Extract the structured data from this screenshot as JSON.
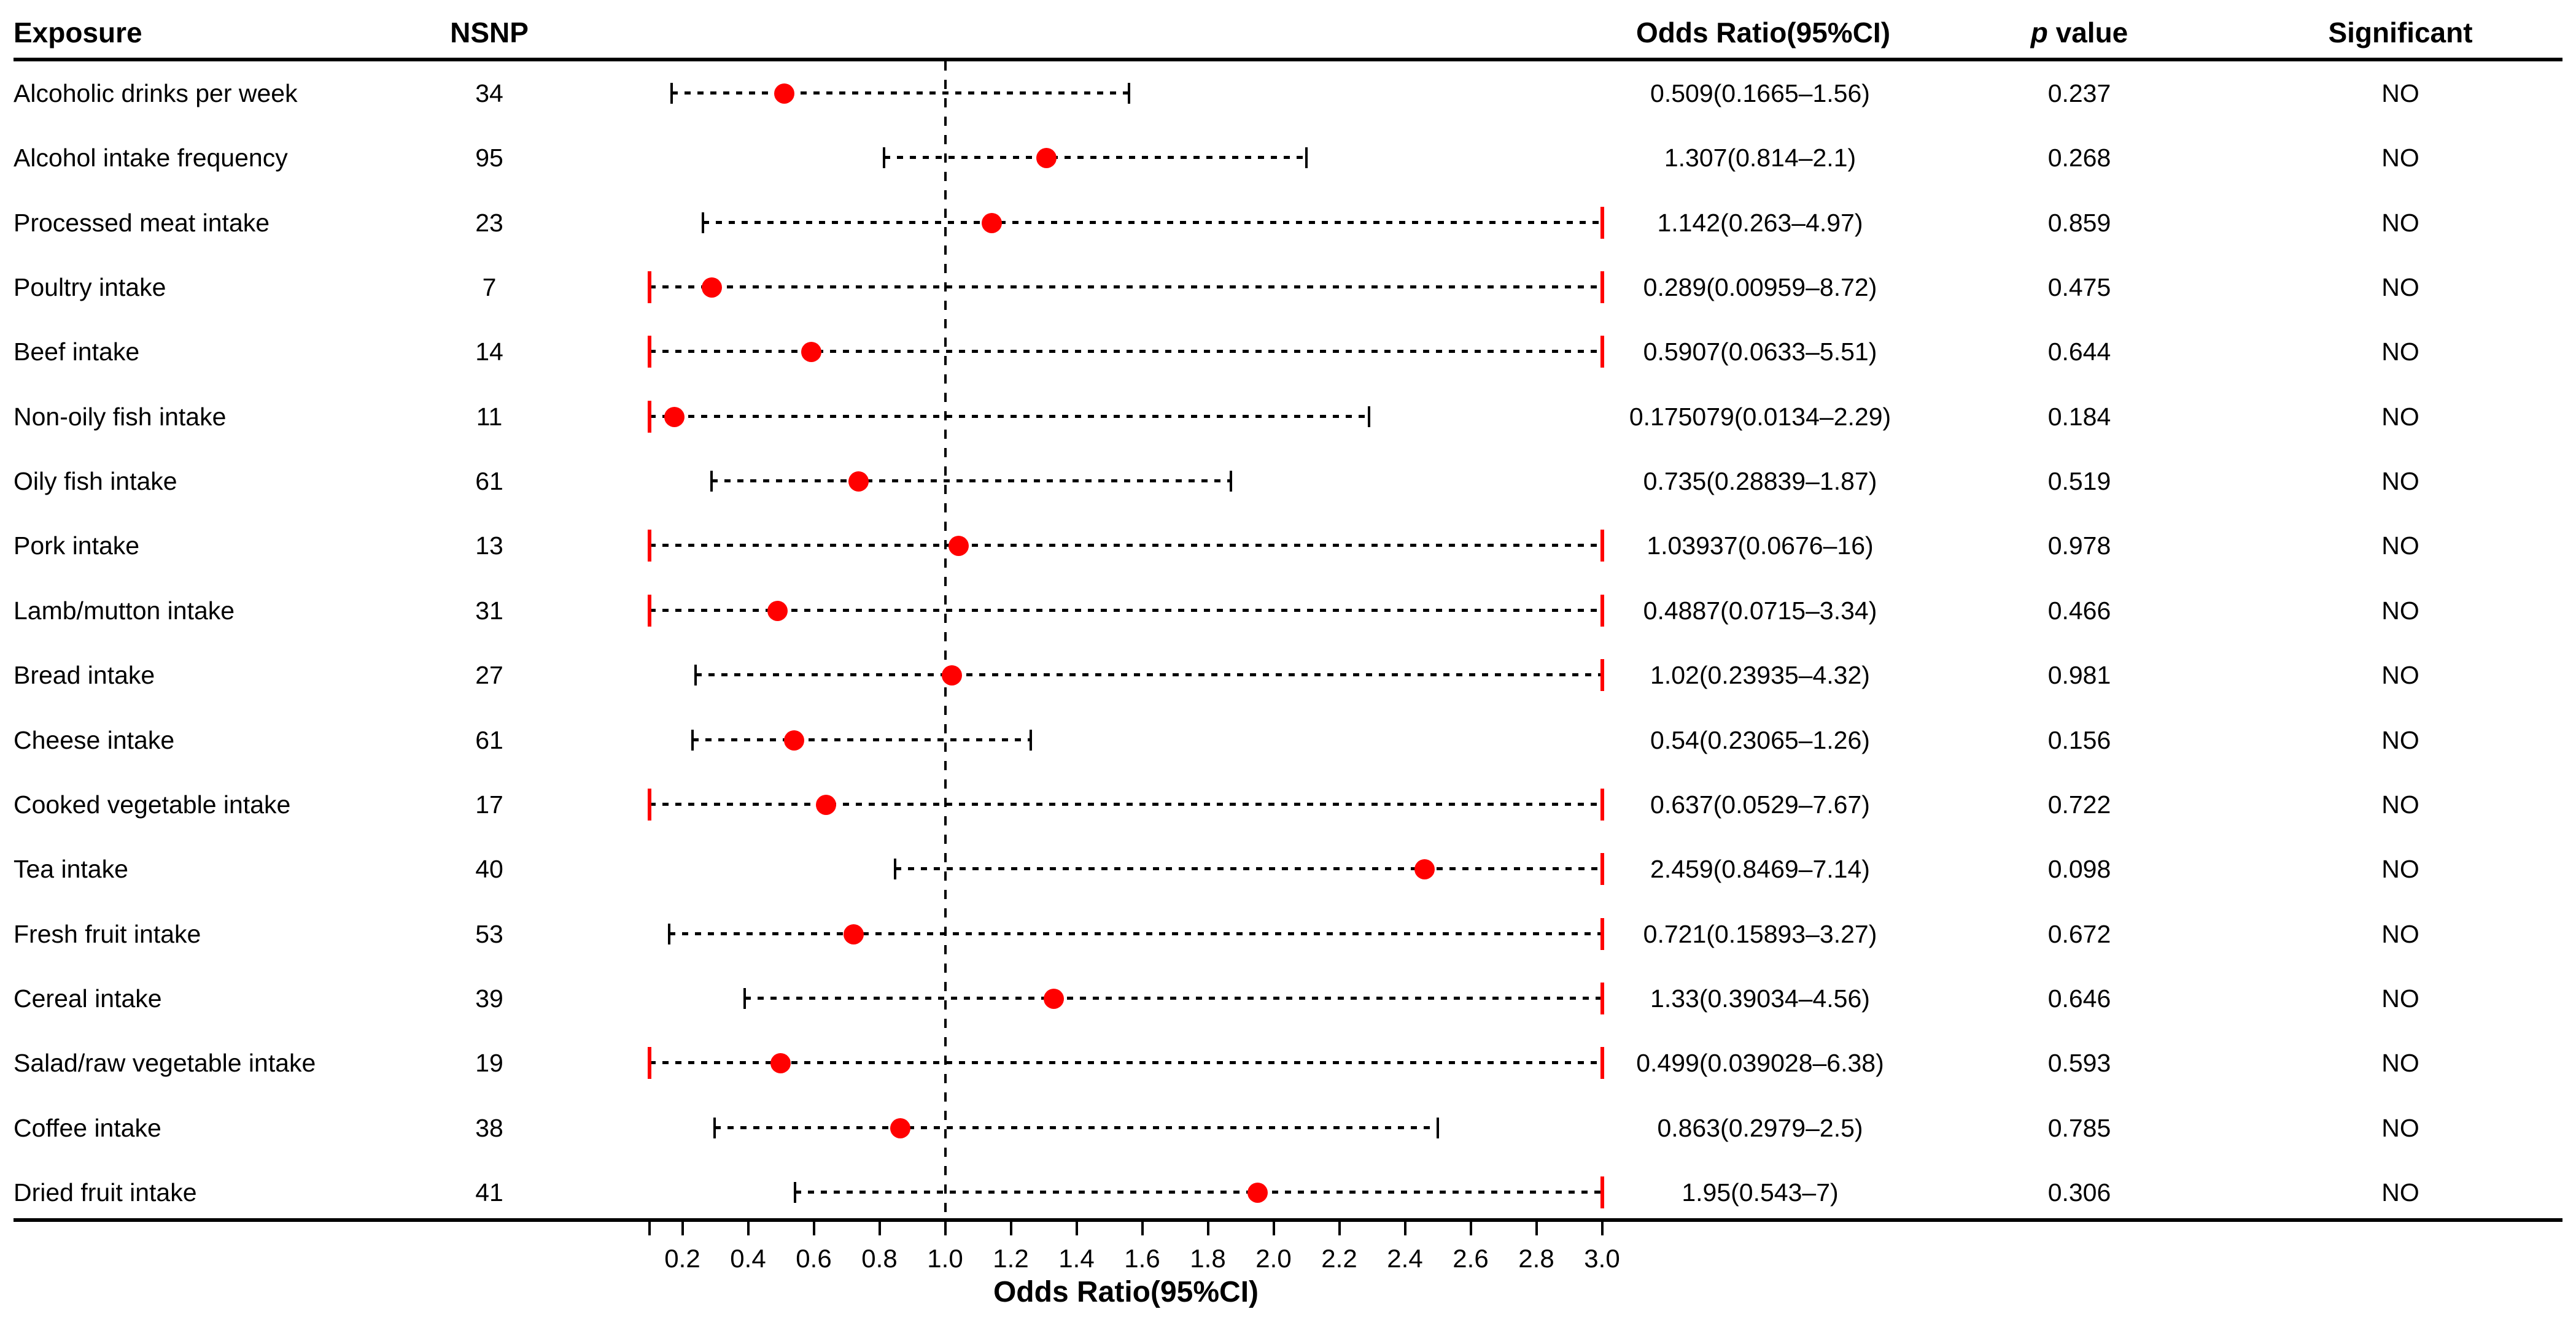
{
  "columns": {
    "exposure": "Exposure",
    "nsnp": "NSNP",
    "or_ci": "Odds Ratio(95%CI)",
    "p_italic": "p",
    "p_rest": " value",
    "significant": "Significant"
  },
  "colors": {
    "marker": "#ff0000",
    "clip_bar": "#ff0000",
    "line": "#000000",
    "text": "#000000",
    "background": "#ffffff"
  },
  "chart_data": {
    "type": "scatter",
    "subtype": "forest-plot",
    "title": "",
    "xlabel": "Odds Ratio(95%CI)",
    "ylabel": "",
    "grid": false,
    "x_axis": {
      "min": 0.1,
      "max": 3.05,
      "clip_low": 0.1,
      "clip_high": 3.0,
      "reference_line": 1.0,
      "minor_tick": 0.1,
      "ticks": [
        0.2,
        0.4,
        0.6,
        0.8,
        1.0,
        1.2,
        1.4,
        1.6,
        1.8,
        2.0,
        2.2,
        2.4,
        2.6,
        2.8,
        3.0
      ],
      "tick_labels": [
        "0.2",
        "0.4",
        "0.6",
        "0.8",
        "1.0",
        "1.2",
        "1.4",
        "1.6",
        "1.8",
        "2.0",
        "2.2",
        "2.4",
        "2.6",
        "2.8",
        "3.0"
      ]
    },
    "rows": [
      {
        "exposure": "Alcoholic drinks per week",
        "nsnp": "34",
        "or": 0.509,
        "ci_low": 0.1665,
        "ci_high": 1.56,
        "or_ci": "0.509(0.1665–1.56)",
        "p": "0.237",
        "significant": "NO"
      },
      {
        "exposure": "Alcohol intake frequency",
        "nsnp": "95",
        "or": 1.307,
        "ci_low": 0.814,
        "ci_high": 2.1,
        "or_ci": "1.307(0.814–2.1)",
        "p": "0.268",
        "significant": "NO"
      },
      {
        "exposure": "Processed meat intake",
        "nsnp": "23",
        "or": 1.142,
        "ci_low": 0.263,
        "ci_high": 4.97,
        "or_ci": "1.142(0.263–4.97)",
        "p": "0.859",
        "significant": "NO"
      },
      {
        "exposure": "Poultry intake",
        "nsnp": "7",
        "or": 0.289,
        "ci_low": 0.00959,
        "ci_high": 8.72,
        "or_ci": "0.289(0.00959–8.72)",
        "p": "0.475",
        "significant": "NO"
      },
      {
        "exposure": "Beef intake",
        "nsnp": "14",
        "or": 0.5907,
        "ci_low": 0.0633,
        "ci_high": 5.51,
        "or_ci": "0.5907(0.0633–5.51)",
        "p": "0.644",
        "significant": "NO"
      },
      {
        "exposure": "Non-oily fish intake",
        "nsnp": "11",
        "or": 0.175079,
        "ci_low": 0.0134,
        "ci_high": 2.29,
        "or_ci": "0.175079(0.0134–2.29)",
        "p": "0.184",
        "significant": "NO"
      },
      {
        "exposure": "Oily fish intake",
        "nsnp": "61",
        "or": 0.735,
        "ci_low": 0.28839,
        "ci_high": 1.87,
        "or_ci": "0.735(0.28839–1.87)",
        "p": "0.519",
        "significant": "NO"
      },
      {
        "exposure": "Pork intake",
        "nsnp": "13",
        "or": 1.03937,
        "ci_low": 0.0676,
        "ci_high": 16,
        "or_ci": "1.03937(0.0676–16)",
        "p": "0.978",
        "significant": "NO"
      },
      {
        "exposure": "Lamb/mutton intake",
        "nsnp": "31",
        "or": 0.4887,
        "ci_low": 0.0715,
        "ci_high": 3.34,
        "or_ci": "0.4887(0.0715–3.34)",
        "p": "0.466",
        "significant": "NO"
      },
      {
        "exposure": "Bread intake",
        "nsnp": "27",
        "or": 1.02,
        "ci_low": 0.23935,
        "ci_high": 4.32,
        "or_ci": "1.02(0.23935–4.32)",
        "p": "0.981",
        "significant": "NO"
      },
      {
        "exposure": "Cheese intake",
        "nsnp": "61",
        "or": 0.54,
        "ci_low": 0.23065,
        "ci_high": 1.26,
        "or_ci": "0.54(0.23065–1.26)",
        "p": "0.156",
        "significant": "NO"
      },
      {
        "exposure": "Cooked vegetable intake",
        "nsnp": "17",
        "or": 0.637,
        "ci_low": 0.0529,
        "ci_high": 7.67,
        "or_ci": "0.637(0.0529–7.67)",
        "p": "0.722",
        "significant": "NO"
      },
      {
        "exposure": "Tea intake",
        "nsnp": "40",
        "or": 2.459,
        "ci_low": 0.8469,
        "ci_high": 7.14,
        "or_ci": "2.459(0.8469–7.14)",
        "p": "0.098",
        "significant": "NO"
      },
      {
        "exposure": "Fresh fruit intake",
        "nsnp": "53",
        "or": 0.721,
        "ci_low": 0.15893,
        "ci_high": 3.27,
        "or_ci": "0.721(0.15893–3.27)",
        "p": "0.672",
        "significant": "NO"
      },
      {
        "exposure": "Cereal intake",
        "nsnp": "39",
        "or": 1.33,
        "ci_low": 0.39034,
        "ci_high": 4.56,
        "or_ci": "1.33(0.39034–4.56)",
        "p": "0.646",
        "significant": "NO"
      },
      {
        "exposure": "Salad/raw vegetable intake",
        "nsnp": "19",
        "or": 0.499,
        "ci_low": 0.039028,
        "ci_high": 6.38,
        "or_ci": "0.499(0.039028–6.38)",
        "p": "0.593",
        "significant": "NO"
      },
      {
        "exposure": "Coffee intake",
        "nsnp": "38",
        "or": 0.863,
        "ci_low": 0.2979,
        "ci_high": 2.5,
        "or_ci": "0.863(0.2979–2.5)",
        "p": "0.785",
        "significant": "NO"
      },
      {
        "exposure": "Dried fruit intake",
        "nsnp": "41",
        "or": 1.95,
        "ci_low": 0.543,
        "ci_high": 7,
        "or_ci": "1.95(0.543–7)",
        "p": "0.306",
        "significant": "NO"
      }
    ]
  }
}
